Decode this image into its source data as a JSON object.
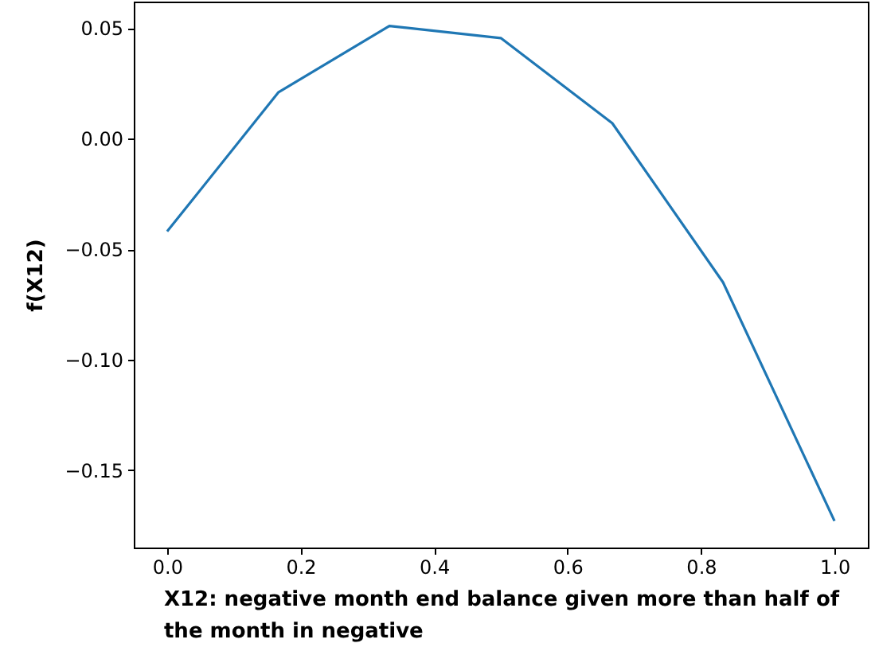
{
  "chart_data": {
    "type": "line",
    "xlabel": "X12: negative month end balance given more than half of the month in negative",
    "ylabel": "f(X12)",
    "x": [
      0,
      0.167,
      0.333,
      0.5,
      0.667,
      0.833,
      1
    ],
    "series": [
      {
        "color": "#1f77b4",
        "values": [
          -0.042,
          0.021,
          0.051,
          0.0455,
          0.007,
          -0.065,
          -0.173
        ]
      }
    ],
    "xlim": [
      -0.05,
      1.05
    ],
    "ylim": [
      -0.185,
      0.062
    ],
    "xticks": [
      {
        "value": 0,
        "label": "0.0"
      },
      {
        "value": 0.2,
        "label": "0.2"
      },
      {
        "value": 0.4,
        "label": "0.4"
      },
      {
        "value": 0.6,
        "label": "0.6"
      },
      {
        "value": 0.8,
        "label": "0.8"
      },
      {
        "value": 1,
        "label": "1.0"
      }
    ],
    "yticks": [
      {
        "value": -0.15,
        "label": "−0.15"
      },
      {
        "value": -0.1,
        "label": "−0.10"
      },
      {
        "value": -0.05,
        "label": "−0.05"
      },
      {
        "value": 0,
        "label": "0.00"
      },
      {
        "value": 0.05,
        "label": "0.05"
      }
    ],
    "grid": false
  }
}
